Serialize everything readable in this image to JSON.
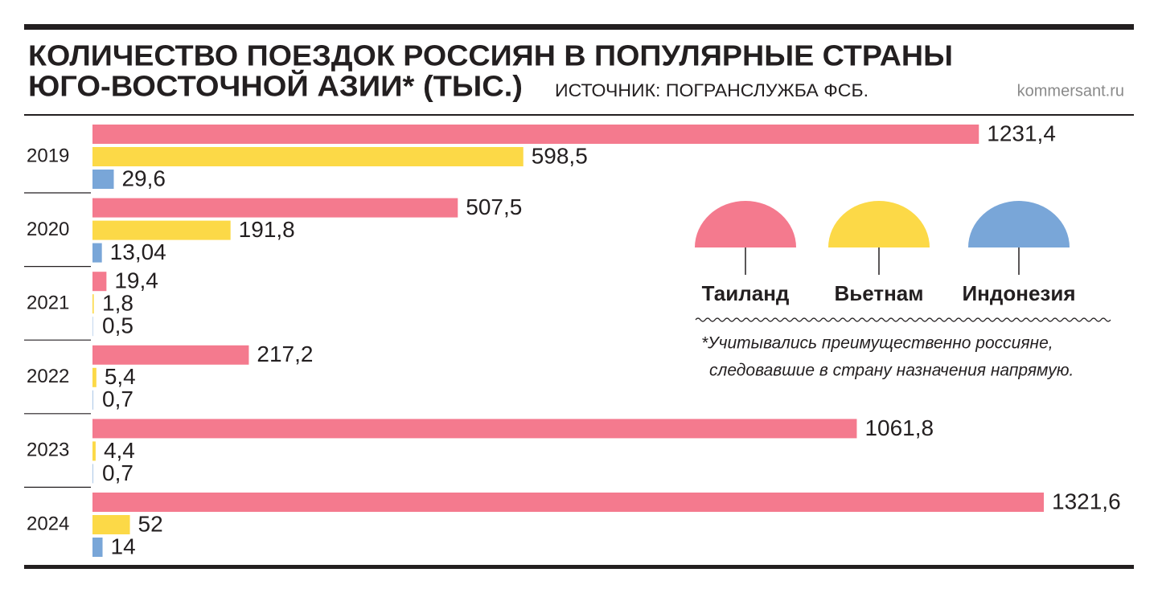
{
  "chart_data": {
    "type": "bar",
    "orientation": "horizontal",
    "title": [
      "КОЛИЧЕСТВО ПОЕЗДОК РОССИЯН В ПОПУЛЯРНЫЕ СТРАНЫ",
      "ЮГО-ВОСТОЧНОЙ АЗИИ* (ТЫС.)"
    ],
    "source": "ИСТОЧНИК: ПОГРАНСЛУЖБА ФСБ.",
    "site": "kommersant.ru",
    "footnote": [
      "*Учитывались преимущественно россияне,",
      "следовавшие в страну назначения напрямую."
    ],
    "categories": [
      "2019",
      "2020",
      "2021",
      "2022",
      "2023",
      "2024"
    ],
    "series": [
      {
        "name": "Таиланд",
        "color": "#f47a8e",
        "values": [
          1231.4,
          507.5,
          19.4,
          217.2,
          1061.8,
          1321.6
        ],
        "value_labels": [
          "1231,4",
          "507,5",
          "19,4",
          "217,2",
          "1061,8",
          "1321,6"
        ]
      },
      {
        "name": "Вьетнам",
        "color": "#fcd947",
        "values": [
          598.5,
          191.8,
          1.8,
          5.4,
          4.4,
          52
        ],
        "value_labels": [
          "598,5",
          "191,8",
          "1,8",
          "5,4",
          "4,4",
          "52"
        ]
      },
      {
        "name": "Индонезия",
        "color": "#79a6d8",
        "values": [
          29.6,
          13.04,
          0.5,
          0.7,
          0.7,
          14
        ],
        "value_labels": [
          "29,6",
          "13,04",
          "0,5",
          "0,7",
          "0,7",
          "14"
        ]
      }
    ]
  }
}
